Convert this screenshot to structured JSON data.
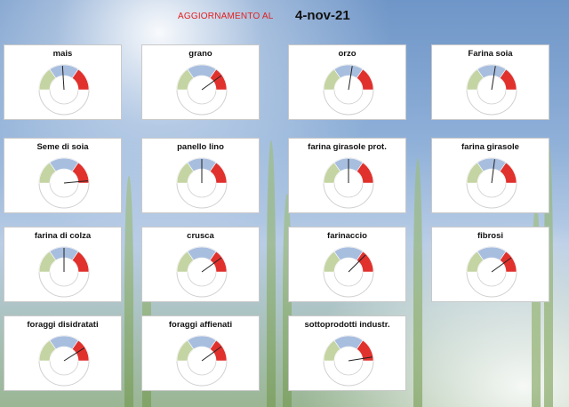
{
  "header": {
    "label": "AGGIORNAMENTO AL",
    "date": "4-nov-21"
  },
  "colors": {
    "green": "#c4d4a3",
    "blue": "#a8bedf",
    "red": "#e0312d",
    "needle": "#222222",
    "header_label": "#e02020"
  },
  "gauges": [
    {
      "name": "mais",
      "needle_fraction": 0.48
    },
    {
      "name": "grano",
      "needle_fraction": 0.8
    },
    {
      "name": "orzo",
      "needle_fraction": 0.55
    },
    {
      "name": "Farina soia",
      "needle_fraction": 0.55
    },
    {
      "name": "Seme di soia",
      "needle_fraction": 0.97
    },
    {
      "name": "panello lino",
      "needle_fraction": 0.5
    },
    {
      "name": "farina girasole prot.",
      "needle_fraction": 0.5
    },
    {
      "name": "farina girasole",
      "needle_fraction": 0.54
    },
    {
      "name": "farina di colza",
      "needle_fraction": 0.5
    },
    {
      "name": "crusca",
      "needle_fraction": 0.8
    },
    {
      "name": "farinaccio",
      "needle_fraction": 0.75
    },
    {
      "name": "fibrosi",
      "needle_fraction": 0.8
    },
    {
      "name": "foraggi disidratati",
      "needle_fraction": 0.82
    },
    {
      "name": "foraggi affienati",
      "needle_fraction": 0.8
    },
    {
      "name": "sottoprodotti industr.",
      "needle_fraction": 0.95
    }
  ]
}
